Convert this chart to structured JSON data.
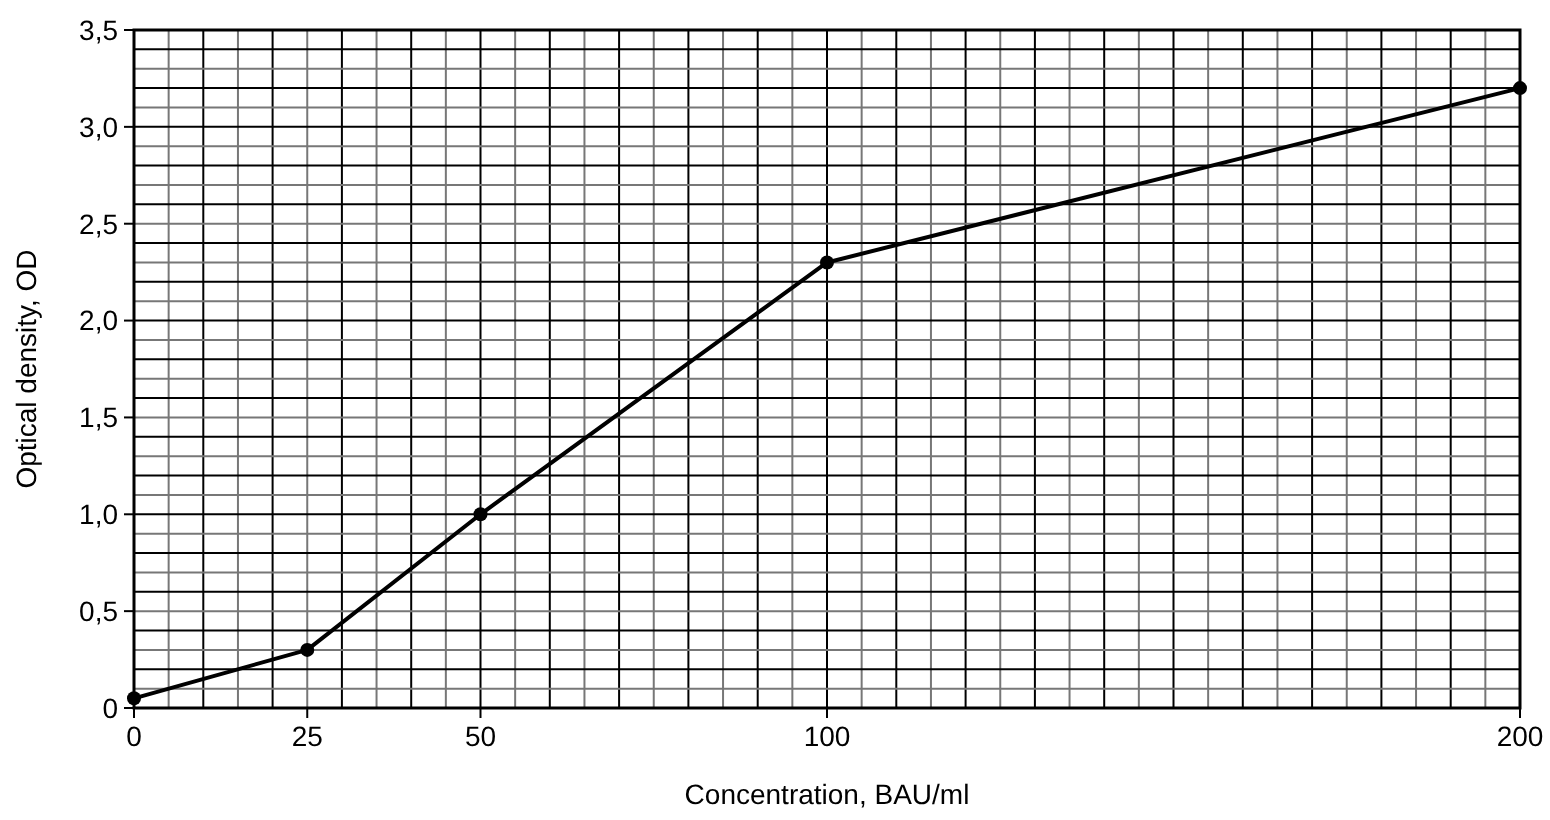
{
  "chart_data": {
    "type": "line",
    "xlabel": "Concentration, BAU/ml",
    "ylabel": "Optical density, OD",
    "x": [
      0,
      25,
      50,
      100,
      200
    ],
    "series": [
      {
        "color": "#000000",
        "values": [
          0.05,
          0.3,
          1.0,
          2.3,
          3.2
        ]
      }
    ],
    "xlim": [
      0,
      200
    ],
    "ylim": [
      0,
      3.5
    ],
    "xticks": [
      0,
      {
        "value": 5,
        "label": null
      },
      {
        "value": 10,
        "label": null
      },
      {
        "value": 15,
        "label": null
      },
      {
        "value": 20,
        "label": null
      },
      25,
      {
        "value": 30,
        "label": null
      },
      {
        "value": 35,
        "label": null
      },
      {
        "value": 40,
        "label": null
      },
      {
        "value": 45,
        "label": null
      },
      50,
      {
        "value": 55,
        "label": null
      },
      {
        "value": 60,
        "label": null
      },
      {
        "value": 65,
        "label": null
      },
      {
        "value": 70,
        "label": null
      },
      {
        "value": 75,
        "label": null
      },
      {
        "value": 80,
        "label": null
      },
      {
        "value": 85,
        "label": null
      },
      {
        "value": 90,
        "label": null
      },
      {
        "value": 95,
        "label": null
      },
      100,
      {
        "value": 105,
        "label": null
      },
      {
        "value": 110,
        "label": null
      },
      {
        "value": 115,
        "label": null
      },
      {
        "value": 120,
        "label": null
      },
      {
        "value": 125,
        "label": null
      },
      {
        "value": 130,
        "label": null
      },
      {
        "value": 135,
        "label": null
      },
      {
        "value": 140,
        "label": null
      },
      {
        "value": 145,
        "label": null
      },
      {
        "value": 150,
        "label": null
      },
      {
        "value": 155,
        "label": null
      },
      {
        "value": 160,
        "label": null
      },
      {
        "value": 165,
        "label": null
      },
      {
        "value": 170,
        "label": null
      },
      {
        "value": 175,
        "label": null
      },
      {
        "value": 180,
        "label": null
      },
      {
        "value": 185,
        "label": null
      },
      {
        "value": 190,
        "label": null
      },
      {
        "value": 195,
        "label": null
      },
      200
    ],
    "yticks": [
      0,
      {
        "value": 0.1,
        "label": null
      },
      {
        "value": 0.2,
        "label": null
      },
      {
        "value": 0.3,
        "label": null
      },
      {
        "value": 0.4,
        "label": null
      },
      {
        "value": 0.5,
        "label": "0,5"
      },
      {
        "value": 0.6,
        "label": null
      },
      {
        "value": 0.7,
        "label": null
      },
      {
        "value": 0.8,
        "label": null
      },
      {
        "value": 0.9,
        "label": null
      },
      {
        "value": 1.0,
        "label": "1,0"
      },
      {
        "value": 1.1,
        "label": null
      },
      {
        "value": 1.2,
        "label": null
      },
      {
        "value": 1.3,
        "label": null
      },
      {
        "value": 1.4,
        "label": null
      },
      {
        "value": 1.5,
        "label": "1,5"
      },
      {
        "value": 1.6,
        "label": null
      },
      {
        "value": 1.7,
        "label": null
      },
      {
        "value": 1.8,
        "label": null
      },
      {
        "value": 1.9,
        "label": null
      },
      {
        "value": 2.0,
        "label": "2,0"
      },
      {
        "value": 2.1,
        "label": null
      },
      {
        "value": 2.2,
        "label": null
      },
      {
        "value": 2.3,
        "label": null
      },
      {
        "value": 2.4,
        "label": null
      },
      {
        "value": 2.5,
        "label": "2,5"
      },
      {
        "value": 2.6,
        "label": null
      },
      {
        "value": 2.7,
        "label": null
      },
      {
        "value": 2.8,
        "label": null
      },
      {
        "value": 2.9,
        "label": null
      },
      {
        "value": 3.0,
        "label": "3,0"
      },
      {
        "value": 3.1,
        "label": null
      },
      {
        "value": 3.2,
        "label": null
      },
      {
        "value": 3.3,
        "label": null
      },
      {
        "value": 3.4,
        "label": null
      },
      {
        "value": 3.5,
        "label": "3,5"
      }
    ],
    "grid": true,
    "marker": "circle",
    "line_style": "solid"
  }
}
